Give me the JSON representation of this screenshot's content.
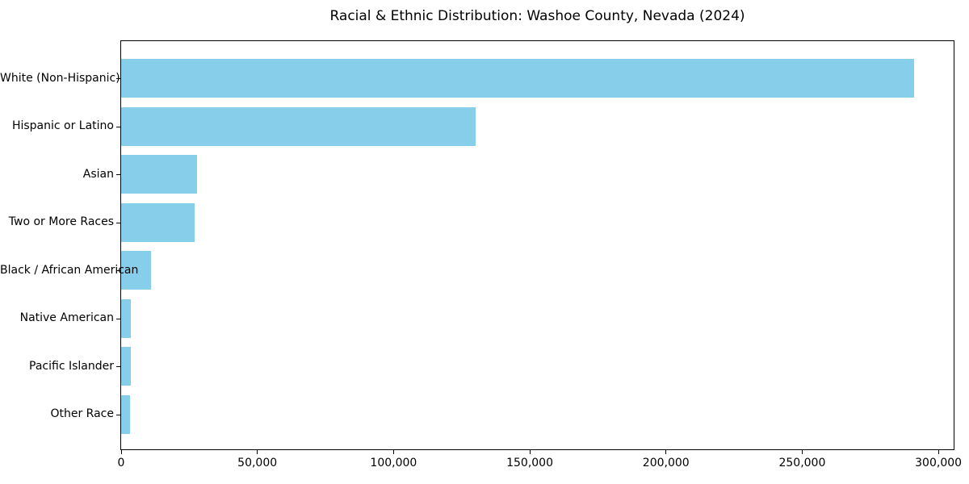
{
  "figure": {
    "background": "#ffffff"
  },
  "chart_data": {
    "type": "bar",
    "orientation": "horizontal",
    "title": "Racial & Ethnic Distribution: Washoe County, Nevada (2024)",
    "categories": [
      "White (Non-Hispanic)",
      "Hispanic or Latino",
      "Asian",
      "Two or More Races",
      "Black / African American",
      "Native American",
      "Pacific Islander",
      "Other Race"
    ],
    "values": [
      291000,
      130000,
      28000,
      27000,
      11000,
      3600,
      3500,
      3200
    ],
    "bar_color": "#87CEEB",
    "axis_color": "#000000",
    "text_color": "#000000",
    "xlabel": "",
    "ylabel": "",
    "xlim": [
      0,
      305600
    ],
    "xticks": [
      0,
      50000,
      100000,
      150000,
      200000,
      250000,
      300000
    ],
    "xtick_labels": [
      "0",
      "50,000",
      "100,000",
      "150,000",
      "200,000",
      "250,000",
      "300,000"
    ],
    "grid": false,
    "legend": "none"
  }
}
